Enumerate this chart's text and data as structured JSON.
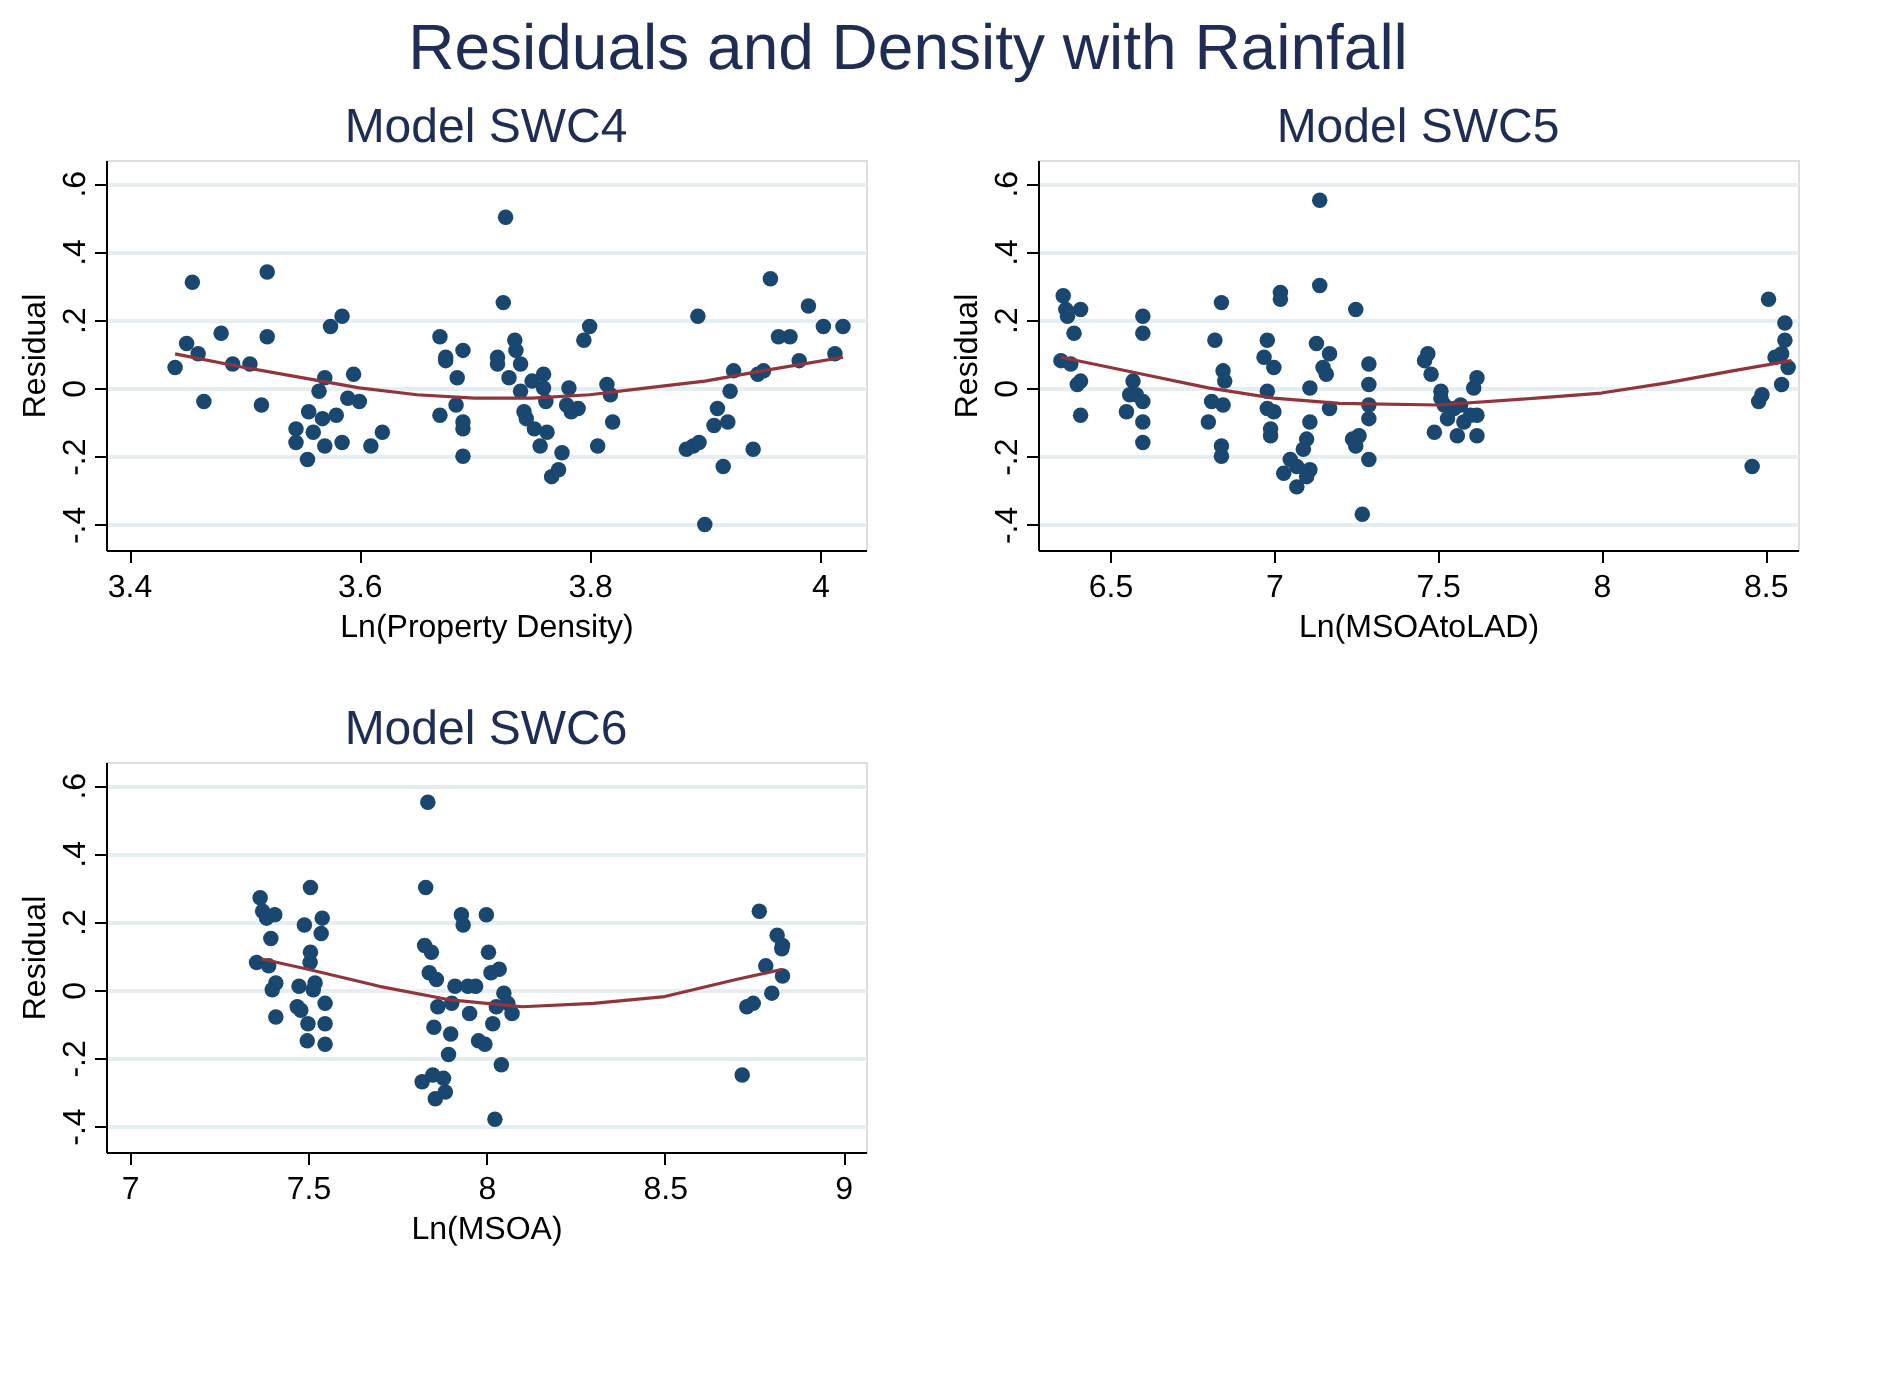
{
  "chart_data": [
    {
      "type": "other",
      "title": "Residuals and Density with Rainfall"
    },
    {
      "type": "scatter",
      "title": "Model SWC4",
      "xlabel": "Ln(Property Density)",
      "ylabel": "Residual",
      "xlim": [
        3.38,
        4.04
      ],
      "xticks": [
        3.4,
        3.6,
        3.8,
        4
      ],
      "ylim": [
        -0.475,
        0.668
      ],
      "yticks": [
        {
          "value": -0.4,
          "label": "-.4"
        },
        {
          "value": -0.2,
          "label": "-.2"
        },
        0,
        {
          "value": 0.2,
          "label": ".2"
        },
        {
          "value": 0.4,
          "label": ".4"
        },
        {
          "value": 0.6,
          "label": ".6"
        }
      ],
      "grid": "y",
      "series": [
        {
          "type": "scatter",
          "marker": "circle",
          "color": "#1a476f",
          "x": [
            3.44,
            3.45,
            3.455,
            3.46,
            3.465,
            3.48,
            3.49,
            3.505,
            3.515,
            3.52,
            3.52,
            3.545,
            3.545,
            3.555,
            3.556,
            3.56,
            3.565,
            3.568,
            3.57,
            3.57,
            3.575,
            3.58,
            3.585,
            3.585,
            3.59,
            3.595,
            3.6,
            3.61,
            3.62,
            3.67,
            3.67,
            3.675,
            3.675,
            3.684,
            3.685,
            3.69,
            3.69,
            3.69,
            3.69,
            3.725,
            3.727,
            3.72,
            3.72,
            3.73,
            3.735,
            3.736,
            3.74,
            3.74,
            3.743,
            3.745,
            3.75,
            3.752,
            3.757,
            3.76,
            3.76,
            3.762,
            3.763,
            3.767,
            3.773,
            3.776,
            3.78,
            3.782,
            3.784,
            3.79,
            3.795,
            3.8,
            3.807,
            3.815,
            3.818,
            3.82,
            3.884,
            3.89,
            3.895,
            3.894,
            3.9,
            3.908,
            3.911,
            3.916,
            3.92,
            3.922,
            3.925,
            3.942,
            3.946,
            3.951,
            3.957,
            3.964,
            3.974,
            3.982,
            3.99,
            4.003,
            4.013,
            4.02
          ],
          "values": [
            0.06,
            0.13,
            0.31,
            0.1,
            -0.04,
            0.16,
            0.07,
            0.07,
            -0.05,
            0.15,
            0.34,
            -0.12,
            -0.16,
            -0.21,
            -0.07,
            -0.13,
            -0.01,
            -0.09,
            -0.17,
            0.03,
            0.18,
            -0.08,
            -0.16,
            0.21,
            -0.03,
            0.04,
            -0.04,
            -0.17,
            -0.13,
            0.15,
            -0.08,
            0.08,
            0.09,
            -0.05,
            0.03,
            0.11,
            -0.12,
            -0.2,
            -0.1,
            0.25,
            0.5,
            0.07,
            0.09,
            0.03,
            0.14,
            0.11,
            -0.01,
            0.07,
            -0.07,
            -0.09,
            0.02,
            -0.12,
            -0.17,
            0.04,
            0.0,
            -0.04,
            -0.13,
            -0.26,
            -0.24,
            -0.19,
            -0.05,
            0.0,
            -0.07,
            -0.06,
            0.14,
            0.18,
            -0.17,
            0.01,
            -0.02,
            -0.1,
            -0.18,
            -0.17,
            -0.16,
            0.21,
            -0.4,
            -0.11,
            -0.06,
            -0.23,
            -0.1,
            -0.01,
            0.05,
            -0.18,
            0.04,
            0.05,
            0.32,
            0.15,
            0.15,
            0.08,
            0.24,
            0.18,
            0.1,
            0.18
          ]
        },
        {
          "type": "line",
          "color": "#90353b",
          "x": [
            3.44,
            3.5,
            3.55,
            3.6,
            3.65,
            3.7,
            3.75,
            3.8,
            3.85,
            3.9,
            3.95,
            4.02
          ],
          "values": [
            0.1,
            0.06,
            0.03,
            0.0,
            -0.02,
            -0.03,
            -0.03,
            -0.02,
            0.0,
            0.02,
            0.05,
            0.09
          ]
        }
      ]
    },
    {
      "type": "scatter",
      "title": "Model SWC5",
      "xlabel": "Ln(MSOAtoLAD)",
      "ylabel": "Residual",
      "xlim": [
        6.28,
        8.6
      ],
      "xticks": [
        6.5,
        7,
        7.5,
        8,
        8.5
      ],
      "ylim": [
        -0.475,
        0.668
      ],
      "yticks": [
        {
          "value": -0.4,
          "label": "-.4"
        },
        {
          "value": -0.2,
          "label": "-.2"
        },
        0,
        {
          "value": 0.2,
          "label": ".2"
        },
        {
          "value": 0.4,
          "label": ".4"
        },
        {
          "value": 0.6,
          "label": ".6"
        }
      ],
      "grid": "y",
      "series": [
        {
          "type": "scatter",
          "marker": "circle",
          "color": "#1a476f",
          "x": [
            6.357,
            6.35,
            6.365,
            6.37,
            6.38,
            6.39,
            6.4,
            6.41,
            6.41,
            6.41,
            6.55,
            6.56,
            6.57,
            6.58,
            6.6,
            6.6,
            6.6,
            6.6,
            6.6,
            6.8,
            6.82,
            6.81,
            6.84,
            6.84,
            6.84,
            6.845,
            6.845,
            6.85,
            6.97,
            6.98,
            6.98,
            6.98,
            6.99,
            6.99,
            7.0,
            7.0,
            7.02,
            7.02,
            7.03,
            7.05,
            7.07,
            7.07,
            7.09,
            7.1,
            7.1,
            7.11,
            7.11,
            7.11,
            7.13,
            7.14,
            7.14,
            7.15,
            7.16,
            7.17,
            7.17,
            7.24,
            7.25,
            7.25,
            7.26,
            7.27,
            7.29,
            7.29,
            7.29,
            7.29,
            7.29,
            7.46,
            7.47,
            7.48,
            7.49,
            7.51,
            7.51,
            7.52,
            7.53,
            7.55,
            7.56,
            7.57,
            7.58,
            7.6,
            7.61,
            7.62,
            7.62,
            7.62,
            8.46,
            8.48,
            8.49,
            8.51,
            8.53,
            8.55,
            8.55,
            8.56,
            8.56,
            8.57
          ],
          "values": [
            0.27,
            0.08,
            0.23,
            0.21,
            0.07,
            0.16,
            0.01,
            0.23,
            0.02,
            -0.08,
            -0.07,
            -0.02,
            0.02,
            -0.02,
            0.21,
            0.16,
            -0.1,
            -0.16,
            -0.04,
            -0.1,
            0.14,
            -0.04,
            -0.2,
            -0.17,
            0.25,
            0.05,
            -0.05,
            0.02,
            0.09,
            0.14,
            -0.06,
            -0.01,
            -0.14,
            -0.12,
            -0.07,
            0.06,
            0.28,
            0.26,
            -0.25,
            -0.21,
            -0.29,
            -0.23,
            -0.18,
            -0.15,
            -0.26,
            -0.1,
            0.0,
            -0.24,
            0.13,
            0.3,
            0.55,
            0.06,
            0.04,
            -0.06,
            0.1,
            -0.15,
            -0.17,
            0.23,
            -0.14,
            -0.37,
            -0.05,
            0.07,
            0.01,
            -0.21,
            -0.09,
            0.08,
            0.1,
            0.04,
            -0.13,
            -0.01,
            -0.03,
            -0.05,
            -0.09,
            -0.06,
            -0.14,
            -0.05,
            -0.1,
            -0.08,
            0.0,
            0.03,
            -0.14,
            -0.08,
            -0.23,
            -0.04,
            -0.02,
            0.26,
            0.09,
            0.1,
            0.01,
            0.19,
            0.14,
            0.06
          ]
        },
        {
          "type": "line",
          "color": "#90353b",
          "x": [
            6.35,
            6.6,
            6.8,
            7.0,
            7.2,
            7.5,
            7.8,
            8.0,
            8.2,
            8.4,
            8.58
          ],
          "values": [
            0.09,
            0.04,
            0.0,
            -0.03,
            -0.045,
            -0.05,
            -0.03,
            -0.015,
            0.015,
            0.05,
            0.08
          ]
        }
      ]
    },
    {
      "type": "scatter",
      "title": "Model SWC6",
      "xlabel": "Ln(MSOA)",
      "ylabel": "Residual",
      "xlim": [
        6.934,
        9.064
      ],
      "xticks": [
        7,
        7.5,
        8,
        8.5,
        9
      ],
      "ylim": [
        -0.476,
        0.668
      ],
      "yticks": [
        {
          "value": -0.4,
          "label": "-.4"
        },
        {
          "value": -0.2,
          "label": "-.2"
        },
        0,
        {
          "value": 0.2,
          "label": ".2"
        },
        {
          "value": 0.4,
          "label": ".4"
        },
        {
          "value": 0.6,
          "label": ".6"
        }
      ],
      "grid": "y",
      "series": [
        {
          "type": "scatter",
          "marker": "circle",
          "color": "#1a476f",
          "x": [
            7.366,
            7.356,
            7.373,
            7.384,
            7.39,
            7.396,
            7.4,
            7.407,
            7.41,
            7.41,
            7.47,
            7.475,
            7.48,
            7.49,
            7.498,
            7.5,
            7.506,
            7.507,
            7.507,
            7.515,
            7.52,
            7.537,
            7.54,
            7.548,
            7.548,
            7.548,
            7.82,
            7.827,
            7.83,
            7.836,
            7.84,
            7.846,
            7.85,
            7.853,
            7.857,
            7.86,
            7.864,
            7.88,
            7.885,
            7.894,
            7.9,
            7.903,
            7.912,
            7.93,
            7.935,
            7.948,
            7.953,
            7.97,
            7.978,
            7.996,
            8.0,
            8.006,
            8.013,
            8.018,
            8.024,
            8.028,
            8.036,
            8.042,
            8.049,
            8.06,
            8.072,
            8.717,
            8.73,
            8.748,
            8.765,
            8.783,
            8.8,
            8.815,
            8.828,
            8.83,
            8.83
          ],
          "values": [
            0.27,
            0.08,
            0.23,
            0.21,
            0.07,
            0.15,
            0.0,
            0.22,
            0.02,
            -0.08,
            -0.05,
            0.01,
            -0.06,
            0.19,
            -0.15,
            -0.1,
            0.08,
            0.11,
            0.3,
            0.0,
            0.02,
            0.165,
            0.21,
            -0.04,
            -0.1,
            -0.16,
            -0.27,
            0.13,
            0.3,
            0.55,
            0.05,
            0.11,
            -0.25,
            -0.11,
            -0.32,
            0.03,
            -0.05,
            -0.26,
            -0.3,
            -0.19,
            -0.13,
            -0.04,
            0.01,
            0.22,
            0.19,
            0.01,
            -0.07,
            0.01,
            -0.15,
            -0.16,
            0.22,
            0.11,
            0.05,
            -0.1,
            -0.38,
            -0.05,
            0.06,
            -0.22,
            -0.01,
            -0.04,
            -0.07,
            -0.25,
            -0.05,
            -0.04,
            0.23,
            0.07,
            -0.01,
            0.16,
            0.12,
            0.04,
            0.13
          ]
        },
        {
          "type": "line",
          "color": "#90353b",
          "x": [
            7.37,
            7.5,
            7.7,
            7.9,
            8.1,
            8.3,
            8.5,
            8.7,
            8.83
          ],
          "values": [
            0.09,
            0.06,
            0.01,
            -0.03,
            -0.05,
            -0.04,
            -0.02,
            0.03,
            0.06
          ]
        }
      ]
    }
  ]
}
